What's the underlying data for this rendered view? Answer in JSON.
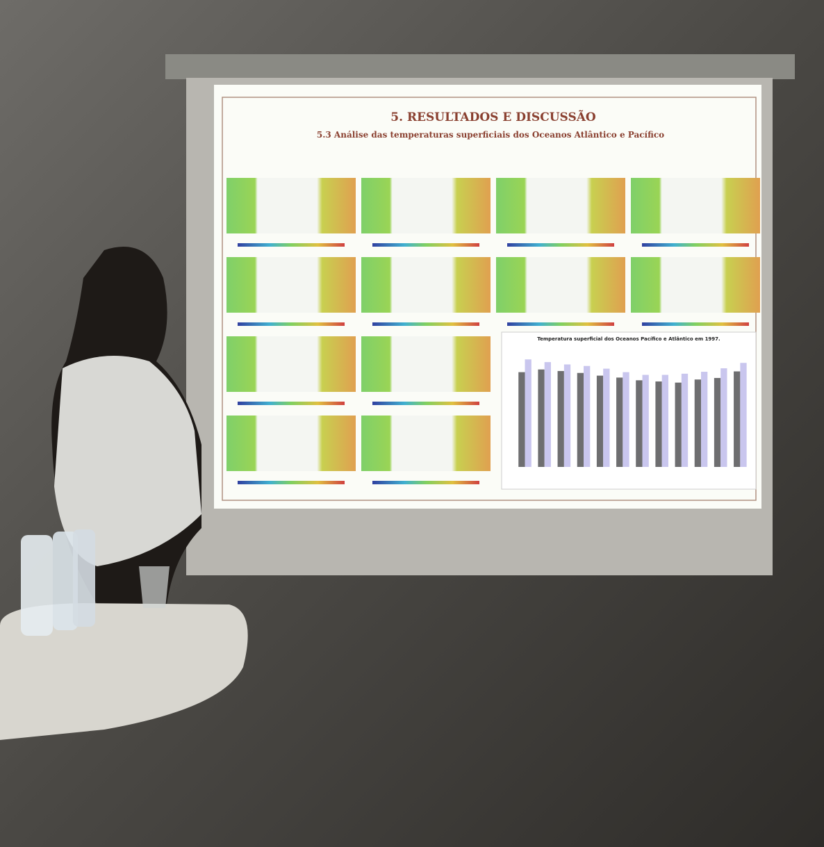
{
  "slide": {
    "title": "5. RESULTADOS E DISCUSSÃO",
    "subtitle": "5.3 Análise das temperaturas superficiais dos Oceanos Atlântico e Pacífico"
  },
  "chart_data": {
    "type": "bar",
    "title": "Temperatura superficial dos Oceanos Pacífico e Atlântico em 1997.",
    "series": [
      {
        "color": "#6e6e70",
        "values": [
          24.5,
          25.2,
          24.8,
          24.3,
          23.6,
          23.1,
          22.4,
          22.1,
          21.8,
          22.6,
          23.0,
          24.7
        ]
      },
      {
        "color": "#c9c6ee",
        "values": [
          27.8,
          27.1,
          26.5,
          26.1,
          25.4,
          24.5,
          23.8,
          23.8,
          24.1,
          24.6,
          25.5,
          26.9
        ]
      }
    ],
    "ylim": [
      0,
      30
    ]
  }
}
